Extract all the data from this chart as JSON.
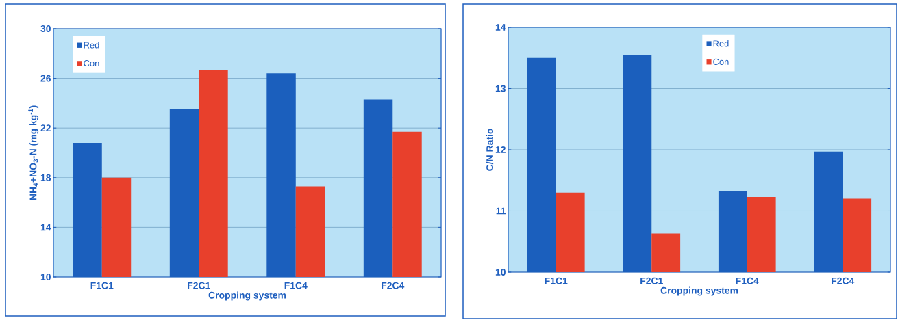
{
  "chart_data": [
    {
      "type": "bar",
      "xlabel": "Cropping system",
      "ylabel": "NH$_{4}$+NO$_{3}$-N (mg kg$^{-1}$)",
      "categories": [
        "F1C1",
        "F2C1",
        "F1C4",
        "F2C4"
      ],
      "series": [
        {
          "name": "Red",
          "color": "#1b5fbd",
          "values": [
            20.8,
            23.5,
            26.4,
            24.3
          ]
        },
        {
          "name": "Con",
          "color": "#e8402c",
          "values": [
            18.0,
            26.7,
            17.3,
            21.7
          ]
        }
      ],
      "ylim": [
        10,
        30
      ],
      "yticks": [
        10,
        14,
        18,
        22,
        26,
        30
      ],
      "grid": "y",
      "legend": "top left"
    },
    {
      "type": "bar",
      "xlabel": "Cropping system",
      "ylabel": "C/N Ratio",
      "categories": [
        "F1C1",
        "F2C1",
        "F1C4",
        "F2C4"
      ],
      "series": [
        {
          "name": "Red",
          "color": "#1b5fbd",
          "values": [
            13.5,
            13.55,
            11.33,
            11.97
          ]
        },
        {
          "name": "Con",
          "color": "#e8402c",
          "values": [
            11.3,
            10.63,
            11.23,
            11.2
          ]
        }
      ],
      "ylim": [
        10,
        14
      ],
      "yticks": [
        10,
        11,
        12,
        13,
        14
      ],
      "grid": "y",
      "legend": "top"
    }
  ]
}
